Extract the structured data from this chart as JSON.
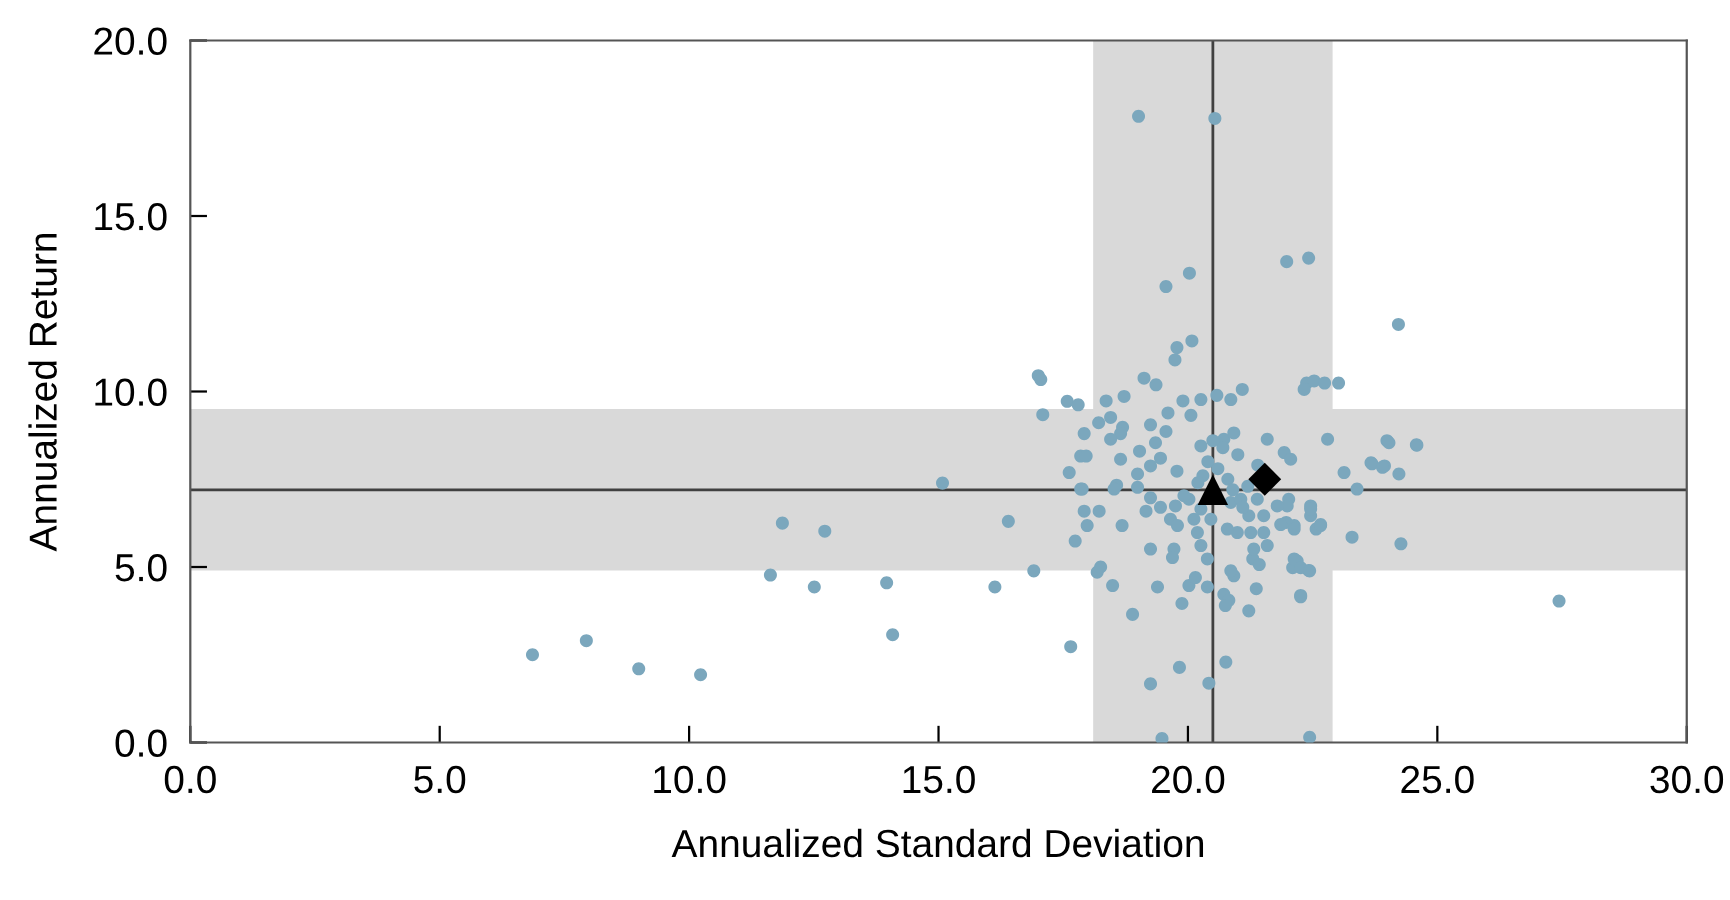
{
  "chart_data": {
    "type": "scatter",
    "xlabel": "Annualized Standard Deviation",
    "ylabel": "Annualized Return",
    "xlim": [
      0,
      30
    ],
    "ylim": [
      0,
      20
    ],
    "xticks": [
      {
        "value": 0,
        "label": "0.0"
      },
      {
        "value": 5,
        "label": "5.0"
      },
      {
        "value": 10,
        "label": "10.0"
      },
      {
        "value": 15,
        "label": "15.0"
      },
      {
        "value": 20,
        "label": "20.0"
      },
      {
        "value": 25,
        "label": "25.0"
      },
      {
        "value": 30,
        "label": "30.0"
      }
    ],
    "yticks": [
      {
        "value": 0,
        "label": "0.0"
      },
      {
        "value": 5,
        "label": "5.0"
      },
      {
        "value": 10,
        "label": "10.0"
      },
      {
        "value": 15,
        "label": "15.0"
      },
      {
        "value": 20,
        "label": "20.0"
      }
    ],
    "grid": false,
    "bands": [
      {
        "axis": "x",
        "from": 18.1,
        "to": 22.9,
        "color": "#d9d9d9"
      },
      {
        "axis": "y",
        "from": 4.9,
        "to": 9.5,
        "color": "#d9d9d9"
      }
    ],
    "ref_lines": [
      {
        "axis": "x",
        "value": 20.5,
        "color": "#404040"
      },
      {
        "axis": "y",
        "value": 7.2,
        "color": "#404040"
      }
    ],
    "series": [
      {
        "color": "#7ba7bd",
        "marker": "circle",
        "x": [
          6.86,
          7.94,
          8.99,
          10.23,
          11.63,
          11.87,
          12.51,
          12.72,
          13.96,
          14.08,
          15.08,
          16.13,
          16.4,
          27.44,
          24.22,
          19.01,
          20.54,
          20.03,
          19.56,
          21.98,
          22.42,
          20.08,
          19.78,
          19.74,
          17.0,
          17.05,
          17.58,
          17.8,
          17.09,
          19.12,
          19.36,
          18.36,
          18.72,
          19.9,
          20.26,
          20.58,
          20.86,
          21.09,
          22.38,
          22.53,
          22.74,
          23.02,
          22.33,
          18.21,
          18.45,
          18.69,
          18.65,
          17.92,
          18.45,
          19.25,
          19.6,
          20.06,
          19.35,
          19.56,
          17.85,
          17.96,
          17.62,
          18.65,
          19.03,
          19.25,
          19.45,
          19.78,
          18.99,
          20.26,
          20.72,
          20.92,
          21.59,
          21.93,
          22.06,
          22.8,
          23.13,
          23.39,
          23.67,
          23.99,
          24.23,
          23.94,
          24.58,
          17.85,
          18.57,
          24.03,
          24.59,
          23.69,
          23.9,
          23.29,
          24.27,
          22.46,
          22.46,
          22.66,
          22.57,
          22.02,
          22.13,
          21.97,
          22.19,
          22.1,
          22.42,
          22.26,
          17.88,
          18.52,
          18.99,
          17.92,
          18.22,
          17.98,
          18.68,
          17.74,
          16.91,
          18.18,
          18.25,
          18.49,
          17.65,
          18.89,
          19.25,
          19.39,
          19.16,
          19.72,
          19.69,
          19.88,
          20.02,
          20.15,
          20.39,
          19.25,
          19.83,
          20.42,
          20.76,
          19.48,
          22.44,
          20.72,
          20.82,
          20.75,
          21.22,
          20.92,
          21.37,
          21.3,
          21.43,
          20.86,
          22.13,
          22.26,
          22.44,
          22.26,
          20.26,
          20.39,
          20.99,
          21.26,
          21.52,
          21.59,
          21.32,
          21.86,
          22.13,
          21.99,
          22.46,
          22.66,
          19.65,
          19.79,
          20.12,
          20.19,
          19.75,
          20.02,
          20.26,
          20.46,
          20.86,
          21.06,
          21.39,
          21.52,
          21.22,
          20.79,
          19.45,
          19.25,
          19.92,
          21.79,
          20.3,
          20.6,
          20.8,
          20.4,
          21.0,
          20.7,
          20.9,
          21.2,
          20.2,
          21.4,
          20.5,
          21.1
        ],
        "values": [
          2.5,
          2.9,
          2.1,
          1.93,
          4.77,
          6.25,
          4.43,
          6.02,
          4.55,
          3.07,
          7.39,
          4.43,
          6.3,
          4.03,
          11.91,
          17.84,
          17.78,
          13.37,
          12.99,
          13.7,
          13.8,
          11.44,
          11.25,
          10.9,
          10.45,
          10.34,
          9.72,
          9.62,
          9.34,
          10.38,
          10.19,
          9.73,
          9.86,
          9.73,
          9.77,
          9.89,
          9.77,
          10.06,
          10.24,
          10.3,
          10.24,
          10.24,
          10.06,
          9.11,
          9.26,
          8.98,
          8.8,
          8.8,
          8.64,
          9.05,
          9.39,
          9.32,
          8.54,
          8.86,
          8.16,
          8.16,
          7.69,
          8.07,
          8.3,
          7.88,
          8.1,
          7.73,
          7.65,
          8.45,
          8.64,
          8.82,
          8.64,
          8.26,
          8.07,
          8.64,
          7.69,
          7.22,
          7.97,
          8.6,
          7.65,
          7.88,
          8.48,
          7.22,
          7.33,
          8.54,
          8.47,
          7.94,
          7.84,
          5.85,
          5.66,
          6.74,
          6.46,
          6.18,
          6.08,
          6.93,
          6.18,
          6.27,
          5.17,
          4.98,
          4.9,
          4.19,
          7.22,
          7.22,
          7.27,
          6.59,
          6.59,
          6.18,
          6.18,
          5.74,
          4.89,
          4.85,
          5.0,
          4.47,
          2.73,
          3.65,
          5.51,
          4.43,
          6.59,
          5.51,
          5.27,
          3.96,
          4.47,
          4.7,
          4.43,
          1.67,
          2.14,
          1.69,
          2.29,
          0.11,
          0.15,
          4.22,
          4.05,
          3.9,
          3.75,
          4.75,
          4.38,
          5.23,
          5.07,
          4.89,
          5.23,
          4.98,
          4.89,
          4.15,
          5.61,
          5.23,
          5.98,
          5.98,
          5.98,
          5.61,
          5.51,
          6.21,
          6.08,
          6.74,
          6.65,
          6.21,
          6.36,
          6.18,
          6.36,
          5.98,
          6.74,
          6.93,
          6.65,
          6.36,
          6.84,
          6.93,
          6.93,
          6.46,
          6.46,
          6.08,
          6.7,
          6.97,
          7.03,
          6.74,
          7.6,
          7.8,
          7.5,
          8.0,
          8.2,
          8.4,
          7.2,
          7.3,
          7.4,
          7.9,
          8.6,
          6.7
        ]
      },
      {
        "color": "#000000",
        "marker": "triangle",
        "x": [
          20.5
        ],
        "values": [
          7.2
        ]
      },
      {
        "color": "#000000",
        "marker": "diamond",
        "x": [
          21.54
        ],
        "values": [
          7.5
        ]
      }
    ]
  }
}
